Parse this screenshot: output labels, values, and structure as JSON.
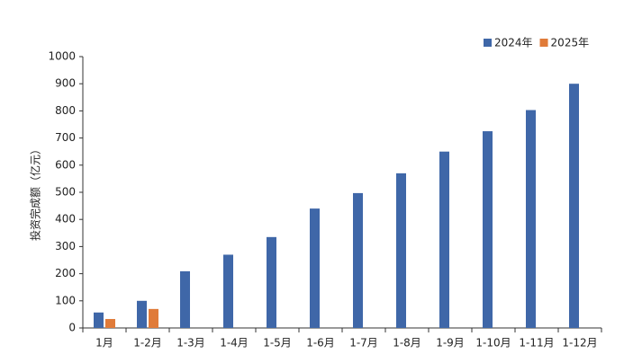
{
  "chart_data": {
    "type": "bar",
    "y_label": "投资完成额（亿元）",
    "categories": [
      "1月",
      "1-2月",
      "1-3月",
      "1-4月",
      "1-5月",
      "1-6月",
      "1-7月",
      "1-8月",
      "1-9月",
      "1-10月",
      "1-11月",
      "1-12月"
    ],
    "series": [
      {
        "name": "2024年",
        "color": "#3f67a8",
        "values": [
          57,
          100,
          209,
          270,
          335,
          440,
          497,
          570,
          650,
          725,
          803,
          900
        ]
      },
      {
        "name": "2025年",
        "color": "#e07b39",
        "values": [
          33,
          70,
          null,
          null,
          null,
          null,
          null,
          null,
          null,
          null,
          null,
          null
        ]
      }
    ],
    "ylim": [
      0,
      1000
    ],
    "yticks": [
      0,
      100,
      200,
      300,
      400,
      500,
      600,
      700,
      800,
      900,
      1000
    ],
    "legend": "top-right"
  }
}
